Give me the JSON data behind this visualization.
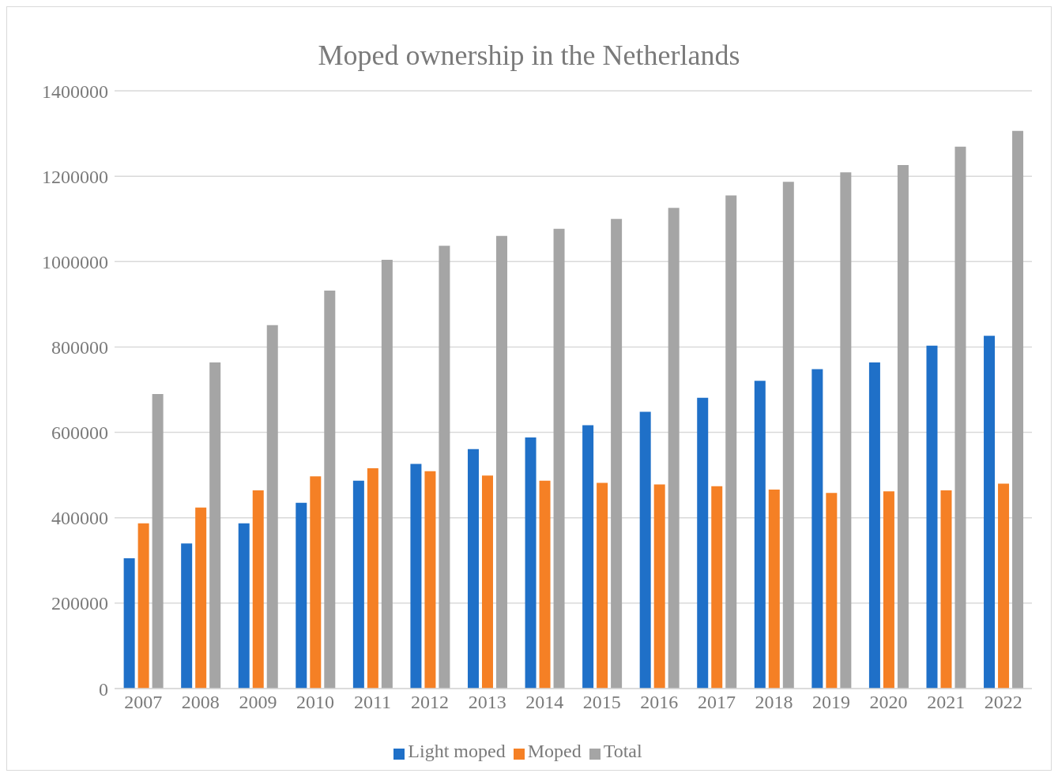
{
  "chart_data": {
    "type": "bar",
    "title": "Moped ownership in the Netherlands",
    "categories": [
      "2007",
      "2008",
      "2009",
      "2010",
      "2011",
      "2012",
      "2013",
      "2014",
      "2015",
      "2016",
      "2017",
      "2018",
      "2019",
      "2020",
      "2021",
      "2022"
    ],
    "series": [
      {
        "name": "Light moped",
        "color": "#1f70c8",
        "values": [
          305000,
          340000,
          387000,
          435000,
          487000,
          526000,
          561000,
          588000,
          617000,
          648000,
          681000,
          721000,
          748000,
          764000,
          803000,
          826000
        ]
      },
      {
        "name": "Moped",
        "color": "#f58025",
        "values": [
          387000,
          424000,
          464000,
          497000,
          516000,
          509000,
          499000,
          487000,
          482000,
          478000,
          474000,
          466000,
          458000,
          462000,
          464000,
          480000
        ]
      },
      {
        "name": "Total",
        "color": "#a5a5a5",
        "values": [
          690000,
          764000,
          851000,
          932000,
          1004000,
          1037000,
          1060000,
          1077000,
          1100000,
          1126000,
          1155000,
          1187000,
          1209000,
          1226000,
          1269000,
          1306000
        ]
      }
    ],
    "ylim": [
      0,
      1400000
    ],
    "yticks": [
      0,
      200000,
      400000,
      600000,
      800000,
      1000000,
      1200000,
      1400000
    ],
    "grid": "y",
    "legend": "bottom"
  }
}
